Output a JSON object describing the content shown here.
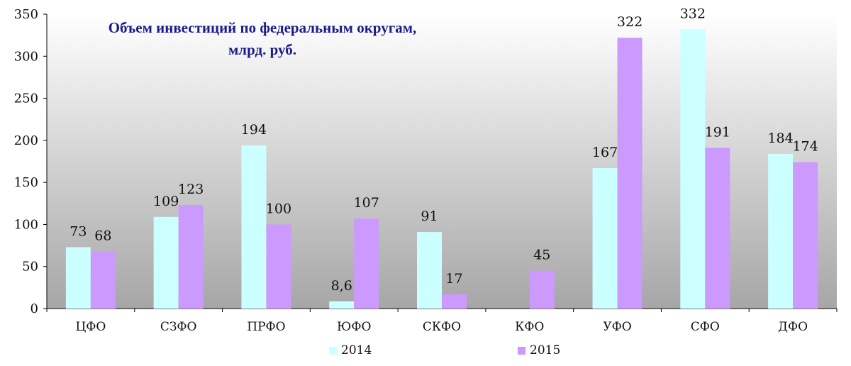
{
  "chart_data": {
    "type": "bar",
    "title": "Объем инвестиций  по федеральным округам,\nмлрд. руб.",
    "categories": [
      "ЦФО",
      "СЗФО",
      "ПРФО",
      "ЮФО",
      "СКФО",
      "КФО",
      "УФО",
      "СФО",
      "ДФО"
    ],
    "series": [
      {
        "name": "2014",
        "color": "#ccffff",
        "values": [
          73,
          109,
          194,
          8.6,
          91,
          null,
          167,
          332,
          184
        ],
        "labels": [
          "73",
          "109",
          "194",
          "8,6",
          "91",
          "",
          "167",
          "332",
          "184"
        ]
      },
      {
        "name": "2015",
        "color": "#cc99ff",
        "values": [
          68,
          123,
          100,
          107,
          17,
          45,
          322,
          191,
          174
        ],
        "labels": [
          "68",
          "123",
          "100",
          "107",
          "17",
          "45",
          "322",
          "191",
          "174"
        ]
      }
    ],
    "ylim": [
      0,
      350
    ],
    "yticks": [
      0,
      50,
      100,
      150,
      200,
      250,
      300,
      350
    ],
    "grid": false,
    "legend": "bottom",
    "plot_background": "vertical gradient white to gray"
  }
}
